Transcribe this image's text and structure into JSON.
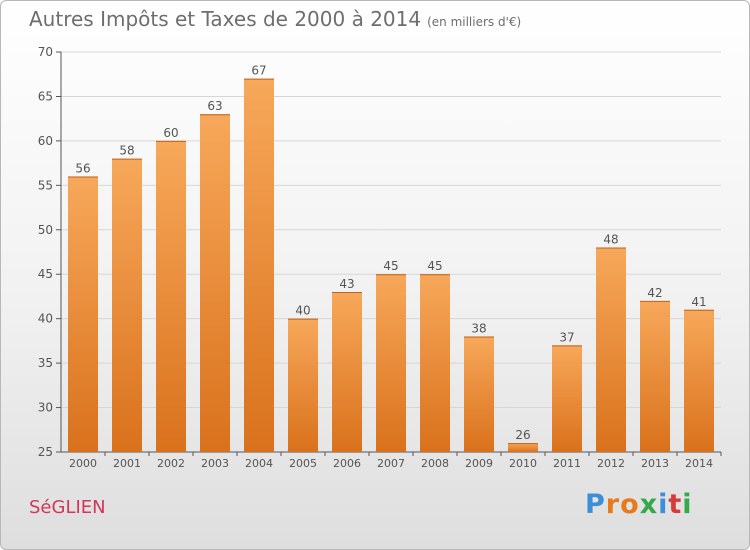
{
  "title": "Autres Impôts et Taxes de 2000 à 2014",
  "unit_label": "(en milliers d'€)",
  "place": "SéGLIEN",
  "logo": {
    "letters": [
      "P",
      "r",
      "o",
      "x",
      "i",
      "t",
      "i"
    ],
    "colors": [
      "#3a8fd8",
      "#e87a1e",
      "#e87a1e",
      "#36a84a",
      "#3a8fd8",
      "#d83a3a",
      "#36a84a"
    ]
  },
  "colors": {
    "bar_light": "#f7a85a",
    "bar_dark": "#d9711c",
    "text": "#555555",
    "title": "#6e6e6e",
    "place": "#d2365a"
  },
  "chart_data": {
    "type": "bar",
    "categories": [
      "2000",
      "2001",
      "2002",
      "2003",
      "2004",
      "2005",
      "2006",
      "2007",
      "2008",
      "2009",
      "2010",
      "2011",
      "2012",
      "2013",
      "2014"
    ],
    "values": [
      56,
      58,
      60,
      63,
      67,
      40,
      43,
      45,
      45,
      38,
      26,
      37,
      48,
      42,
      41
    ],
    "ylim": [
      25,
      70
    ],
    "yticks": [
      25,
      30,
      35,
      40,
      45,
      50,
      55,
      60,
      65,
      70
    ],
    "grid": true,
    "data_labels": true
  }
}
